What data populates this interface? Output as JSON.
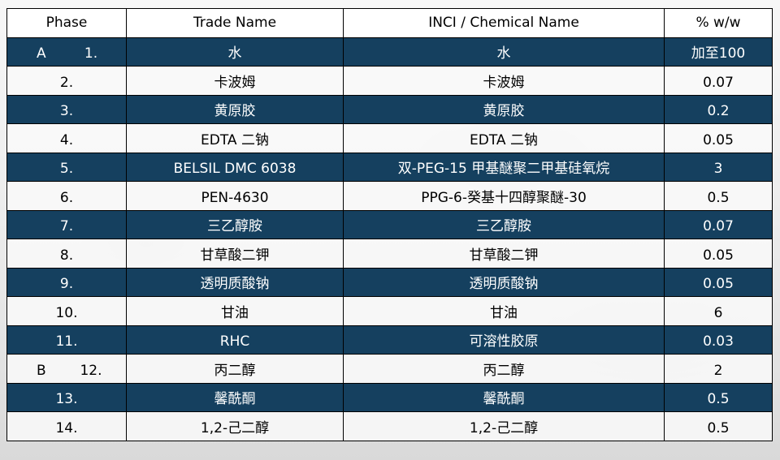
{
  "headers": {
    "phase": "Phase",
    "trade": "Trade Name",
    "inci": "INCI / Chemical Name",
    "pct": "% w/w"
  },
  "colors": {
    "dark_row": "#15405f",
    "light_row": "#fafafa"
  },
  "rows": [
    {
      "group": "A",
      "num": "1.",
      "trade": "水",
      "inci": "水",
      "pct": "加至100"
    },
    {
      "group": "",
      "num": "2.",
      "trade": "卡波姆",
      "inci": "卡波姆",
      "pct": "0.07"
    },
    {
      "group": "",
      "num": "3.",
      "trade": "黄原胶",
      "inci": "黄原胶",
      "pct": "0.2"
    },
    {
      "group": "",
      "num": "4.",
      "trade": "EDTA 二钠",
      "inci": "EDTA 二钠",
      "pct": "0.05"
    },
    {
      "group": "",
      "num": "5.",
      "trade": "BELSIL DMC 6038",
      "inci": "双-PEG-15 甲基醚聚二甲基硅氧烷",
      "pct": "3"
    },
    {
      "group": "",
      "num": "6.",
      "trade": "PEN-4630",
      "inci": "PPG-6-癸基十四醇聚醚-30",
      "pct": "0.5"
    },
    {
      "group": "",
      "num": "7.",
      "trade": "三乙醇胺",
      "inci": "三乙醇胺",
      "pct": "0.07"
    },
    {
      "group": "",
      "num": "8.",
      "trade": "甘草酸二钾",
      "inci": "甘草酸二钾",
      "pct": "0.05"
    },
    {
      "group": "",
      "num": "9.",
      "trade": "透明质酸钠",
      "inci": "透明质酸钠",
      "pct": "0.05"
    },
    {
      "group": "",
      "num": "10.",
      "trade": "甘油",
      "inci": "甘油",
      "pct": "6"
    },
    {
      "group": "",
      "num": "11.",
      "trade": "RHC",
      "inci": "可溶性胶原",
      "pct": "0.03"
    },
    {
      "group": "B",
      "num": "12.",
      "trade": "丙二醇",
      "inci": "丙二醇",
      "pct": "2"
    },
    {
      "group": "",
      "num": "13.",
      "trade": "馨酰酮",
      "inci": "馨酰酮",
      "pct": "0.5"
    },
    {
      "group": "",
      "num": "14.",
      "trade": "1,2-己二醇",
      "inci": "1,2-己二醇",
      "pct": "0.5"
    }
  ]
}
